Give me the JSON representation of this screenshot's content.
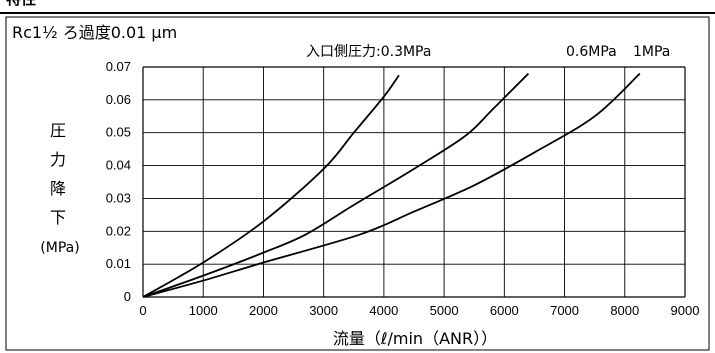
{
  "chart_data": {
    "type": "line",
    "heading": "特性",
    "title": "Rc1½ ろ過度0.01 μm",
    "xlabel": "流量（ℓ/min（ANR））",
    "ylabel": [
      "圧",
      "力",
      "降",
      "下",
      "(MPa)"
    ],
    "xlim": [
      0,
      9000
    ],
    "ylim": [
      0,
      0.07
    ],
    "x_ticks": [
      "0",
      "1000",
      "2000",
      "3000",
      "4000",
      "5000",
      "6000",
      "7000",
      "8000",
      "9000"
    ],
    "y_ticks": [
      "0",
      "0.01",
      "0.02",
      "0.03",
      "0.04",
      "0.05",
      "0.06",
      "0.07"
    ],
    "grid": true,
    "series": [
      {
        "name": "入口側圧力:0.3MPa",
        "points": [
          [
            0,
            0
          ],
          [
            1000,
            0.0105
          ],
          [
            2000,
            0.023
          ],
          [
            3000,
            0.039
          ],
          [
            3500,
            0.05
          ],
          [
            4000,
            0.061
          ],
          [
            4250,
            0.0675
          ]
        ]
      },
      {
        "name": "0.6MPa",
        "points": [
          [
            0,
            0
          ],
          [
            1000,
            0.0065
          ],
          [
            2000,
            0.0135
          ],
          [
            2700,
            0.019
          ],
          [
            3500,
            0.028
          ],
          [
            4500,
            0.039
          ],
          [
            5350,
            0.049
          ],
          [
            5800,
            0.057
          ],
          [
            6400,
            0.068
          ]
        ]
      },
      {
        "name": "1MPa",
        "points": [
          [
            0,
            0
          ],
          [
            1000,
            0.005
          ],
          [
            2000,
            0.0105
          ],
          [
            3600,
            0.019
          ],
          [
            4500,
            0.026
          ],
          [
            5500,
            0.034
          ],
          [
            6500,
            0.044
          ],
          [
            7500,
            0.055
          ],
          [
            8250,
            0.068
          ]
        ]
      }
    ]
  }
}
